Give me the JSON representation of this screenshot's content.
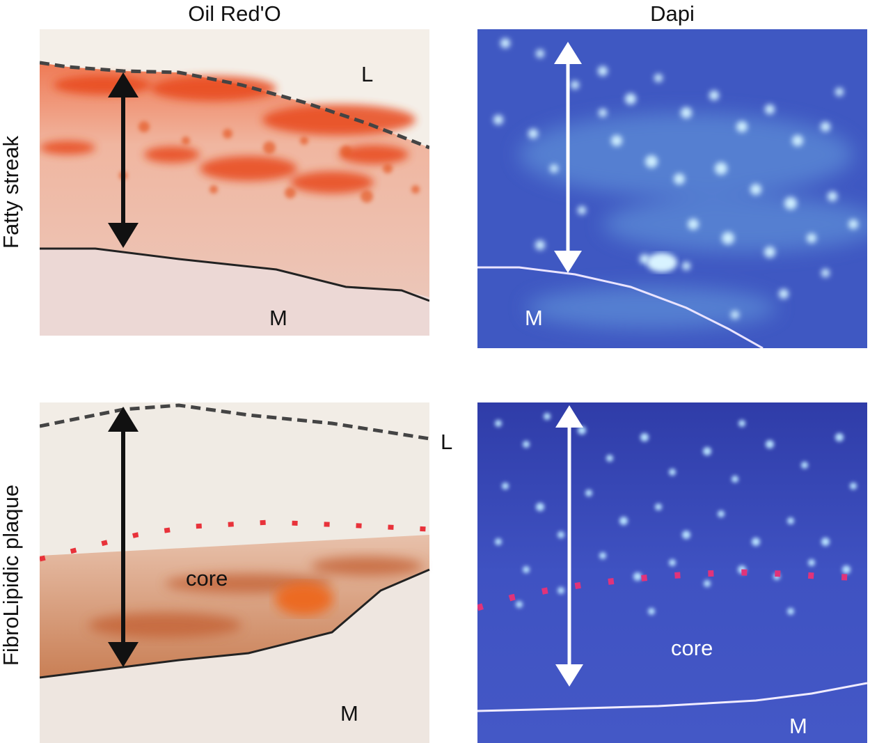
{
  "columns": [
    "Oil Red'O",
    "Dapi"
  ],
  "rows": [
    "Fatty streak",
    "FibroLipidic plaque"
  ],
  "panels": {
    "oil_fatty": {
      "labels": {
        "lumen": "L",
        "media": "M"
      }
    },
    "dapi_fatty": {
      "labels": {
        "media": "M"
      }
    },
    "oil_fibro": {
      "labels": {
        "lumen": "L",
        "core": "core",
        "media": "M"
      }
    },
    "dapi_fibro": {
      "labels": {
        "core": "core",
        "media": "M"
      }
    }
  },
  "colors": {
    "oil_background": "#f0e4df",
    "oil_stain": "#e8501f",
    "dapi_background": "#3e56c0",
    "dapi_nuclei": "#cfefff",
    "arrow_dark": "#111111",
    "arrow_light": "#ffffff",
    "core_boundary": "#e8323a"
  }
}
